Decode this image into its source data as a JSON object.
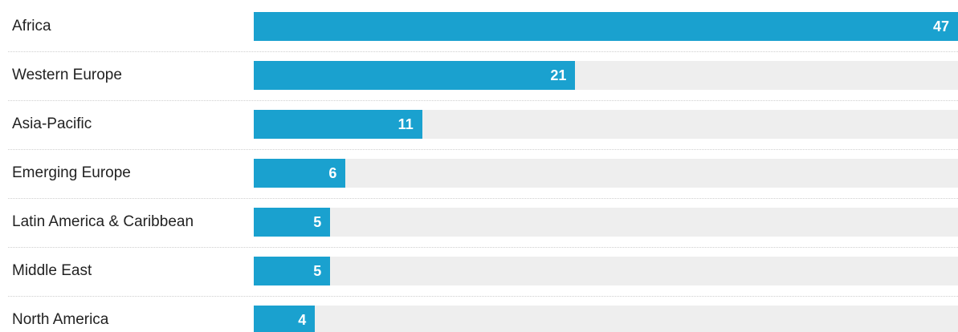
{
  "colors": {
    "bar": "#1aa1cf",
    "track": "#eeeeee",
    "label": "#222222",
    "value_text": "#ffffff"
  },
  "chart_data": {
    "type": "bar",
    "orientation": "horizontal",
    "categories": [
      "Africa",
      "Western Europe",
      "Asia-Pacific",
      "Emerging Europe",
      "Latin America & Caribbean",
      "Middle East",
      "North America"
    ],
    "values": [
      47,
      21,
      11,
      6,
      5,
      5,
      4
    ],
    "value_labels": [
      "47",
      "21",
      "11",
      "6",
      "5",
      "5",
      "4"
    ],
    "xlim": [
      0,
      46
    ],
    "grid": false
  }
}
